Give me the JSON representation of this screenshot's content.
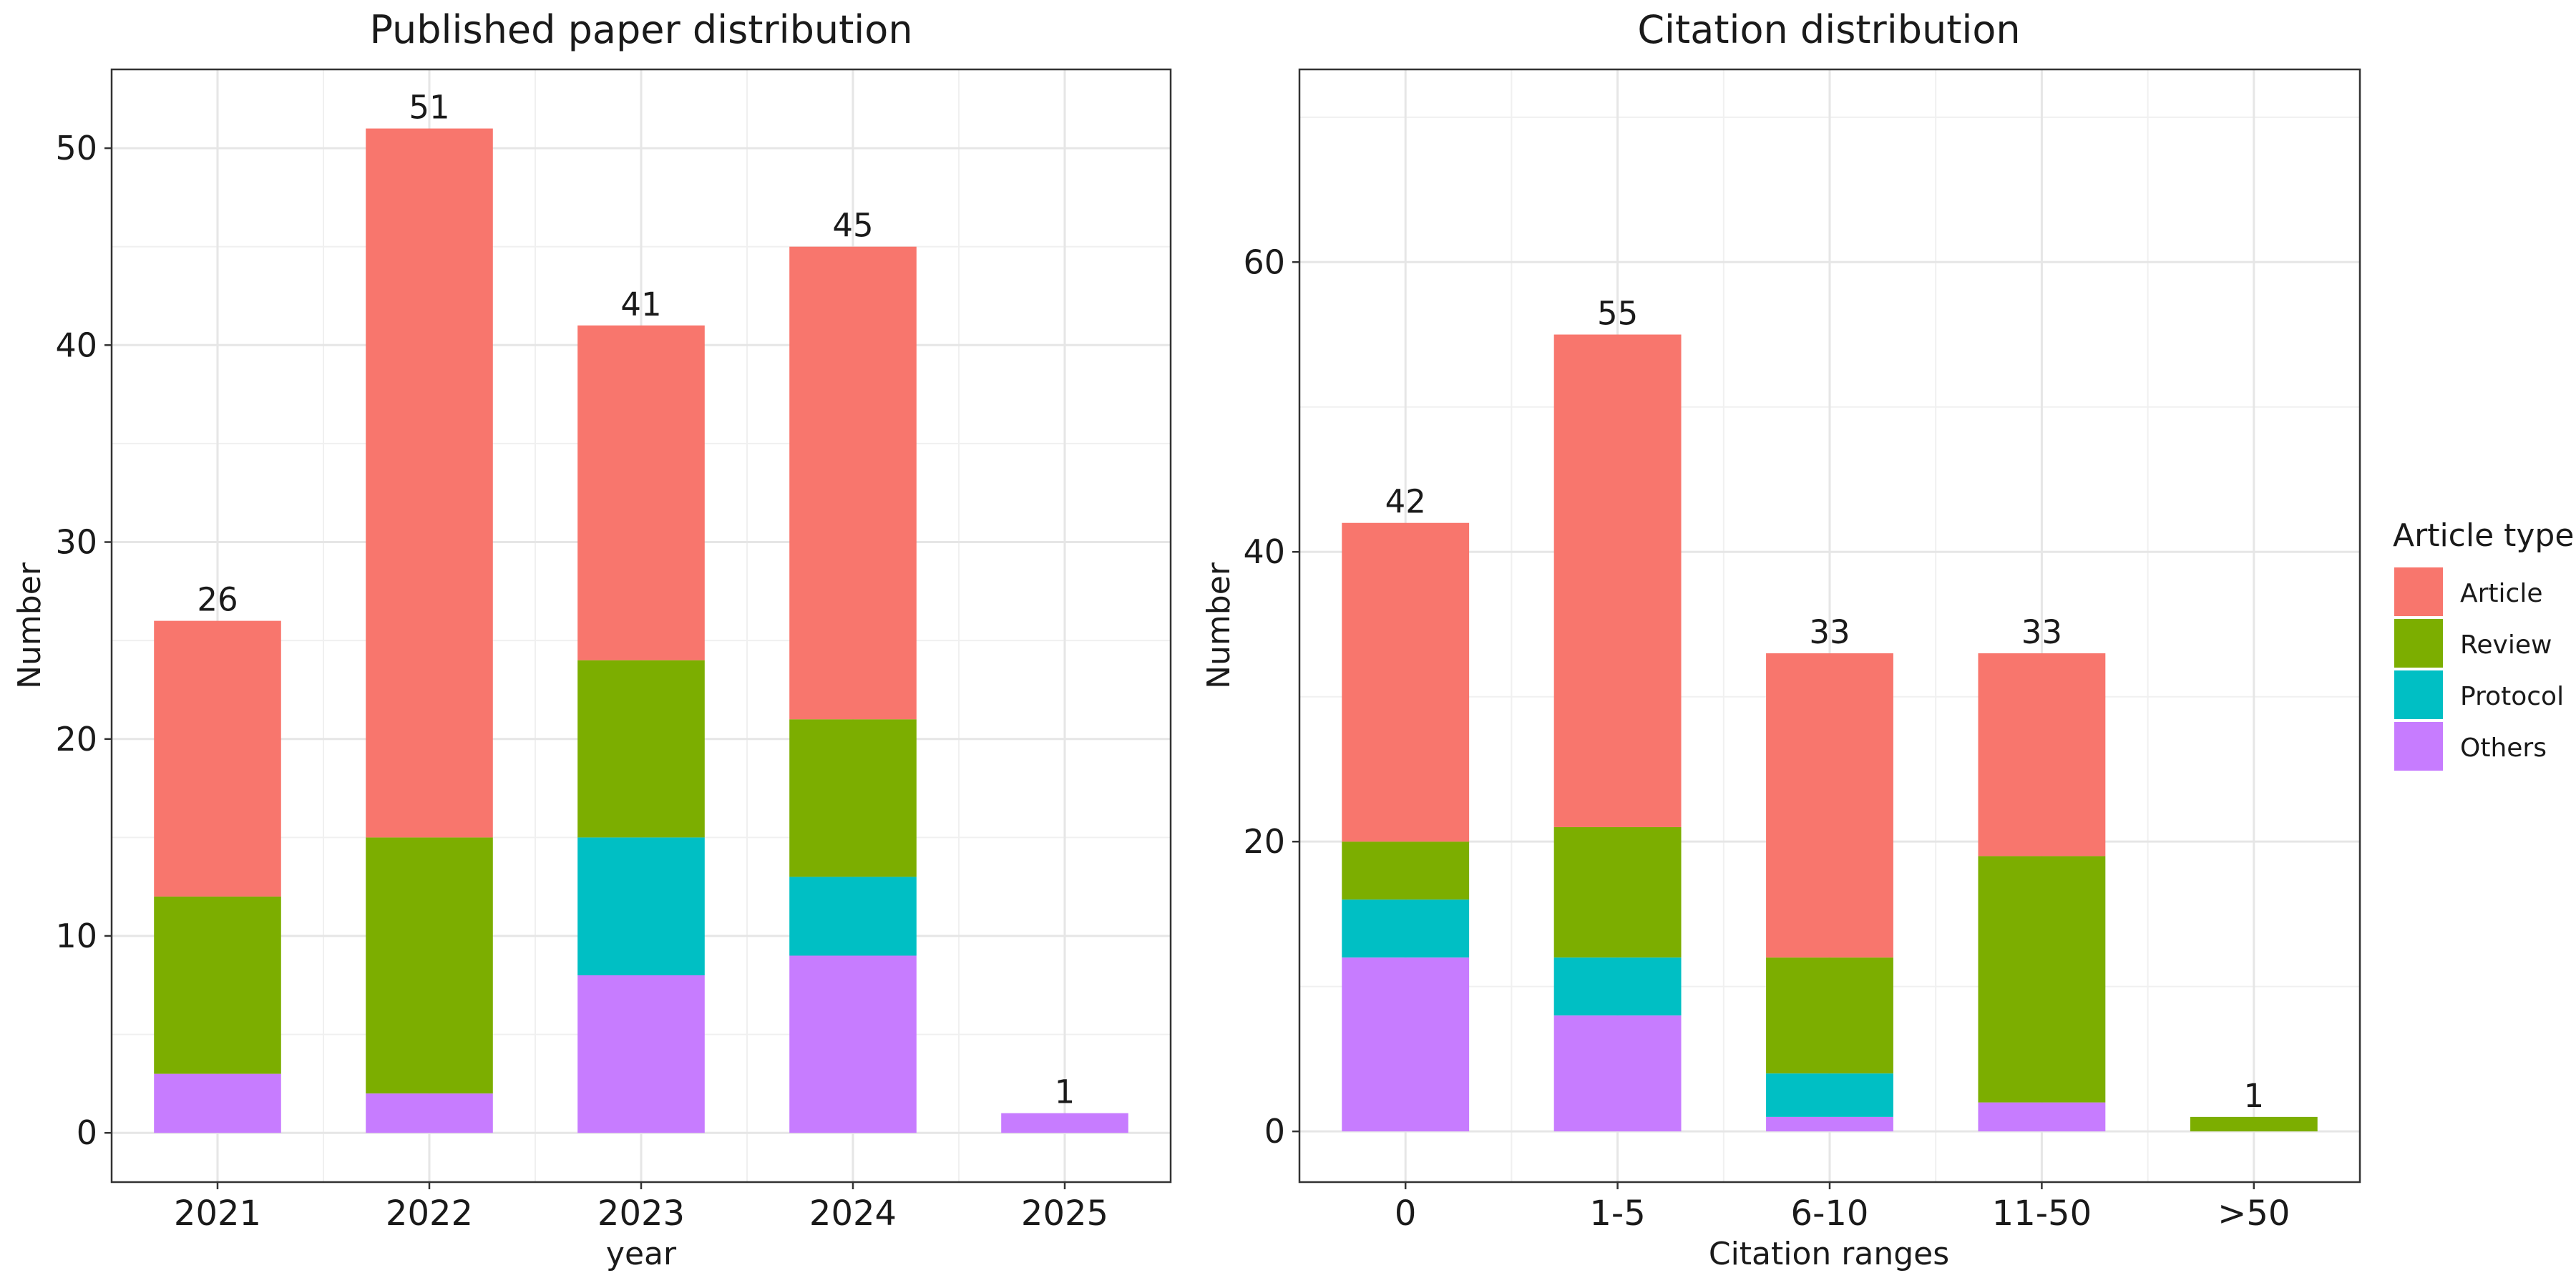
{
  "chart_data": [
    {
      "type": "bar",
      "stacked": true,
      "title": "Published paper distribution",
      "xlabel": "year",
      "ylabel": "Number",
      "categories": [
        "2021",
        "2022",
        "2023",
        "2024",
        "2025"
      ],
      "series": [
        {
          "name": "Others",
          "values": [
            3,
            2,
            8,
            9,
            1
          ]
        },
        {
          "name": "Protocol",
          "values": [
            0,
            0,
            7,
            4,
            0
          ]
        },
        {
          "name": "Review",
          "values": [
            9,
            13,
            9,
            8,
            0
          ]
        },
        {
          "name": "Article",
          "values": [
            14,
            36,
            17,
            24,
            0
          ]
        }
      ],
      "totals": [
        26,
        51,
        41,
        45,
        1
      ],
      "ylim": [
        -2.5,
        54
      ],
      "yticks": [
        0,
        10,
        20,
        30,
        40,
        50
      ],
      "grid": true
    },
    {
      "type": "bar",
      "stacked": true,
      "title": "Citation distribution",
      "xlabel": "Citation ranges",
      "ylabel": "Number",
      "categories": [
        "0",
        "1-5",
        "6-10",
        "11-50",
        ">50"
      ],
      "series": [
        {
          "name": "Others",
          "values": [
            12,
            8,
            1,
            2,
            0
          ]
        },
        {
          "name": "Protocol",
          "values": [
            4,
            4,
            3,
            0,
            0
          ]
        },
        {
          "name": "Review",
          "values": [
            4,
            9,
            8,
            17,
            1
          ]
        },
        {
          "name": "Article",
          "values": [
            22,
            34,
            21,
            14,
            0
          ]
        }
      ],
      "totals": [
        42,
        55,
        33,
        33,
        1
      ],
      "ylim": [
        -3.5,
        73.3
      ],
      "yticks": [
        0,
        20,
        40,
        60
      ],
      "grid": true
    }
  ],
  "legend": {
    "title": "Article type",
    "placement": "right",
    "items": [
      {
        "name": "Article",
        "color": "#F8766D"
      },
      {
        "name": "Review",
        "color": "#7CAE00"
      },
      {
        "name": "Protocol",
        "color": "#00BFC4"
      },
      {
        "name": "Others",
        "color": "#C77CFF"
      }
    ]
  }
}
